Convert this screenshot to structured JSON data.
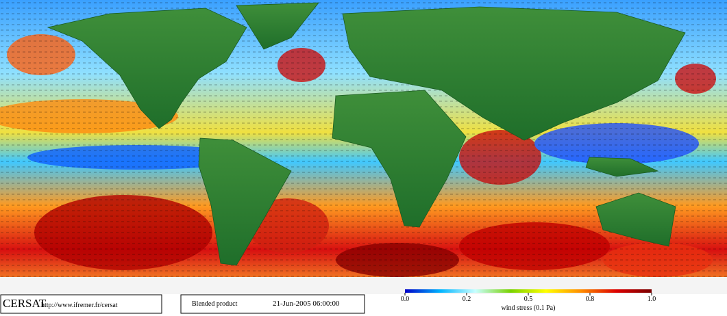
{
  "footer": {
    "logo": "CERSAT",
    "url": "http://www.ifremer.fr/cersat",
    "product": "Blended product",
    "date": "21-Jun-2005 06:00:00"
  },
  "colorbar": {
    "label": "wind stress (0.1 Pa)",
    "ticks": [
      {
        "value": 0,
        "label": "0.0"
      },
      0.2,
      0.5,
      0.8,
      {
        "value": 1,
        "label": "1.0"
      }
    ],
    "colors": [
      "#0000c8",
      "#00b4ff",
      "#c8ffff",
      "#78d200",
      "#ffff00",
      "#ff8c00",
      "#dc0000",
      "#780000"
    ]
  }
}
